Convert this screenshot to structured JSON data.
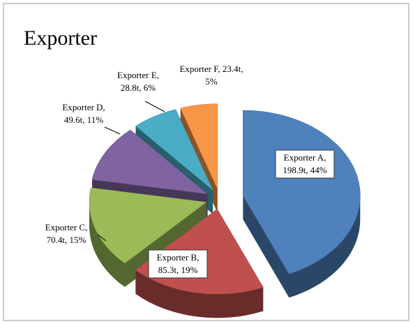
{
  "chart_data": {
    "type": "pie",
    "title": "Exporter",
    "categories": [
      "Exporter A,",
      "Exporter B,",
      "Exporter C,",
      "Exporter D,",
      "Exporter E,",
      "Exporter F, 23.4t,"
    ],
    "values": [
      198.9,
      85.3,
      70.4,
      49.6,
      28.8,
      23.4
    ],
    "value_labels": [
      "198.9t, 44%",
      "85.3t, 19%",
      "70.4t, 15%",
      "49.6t, 11%",
      "28.8t, 6%",
      "5%"
    ],
    "colors": [
      "#4f81bd",
      "#c0504d",
      "#9bbb59",
      "#8064a2",
      "#4bacc6",
      "#f79646"
    ]
  }
}
